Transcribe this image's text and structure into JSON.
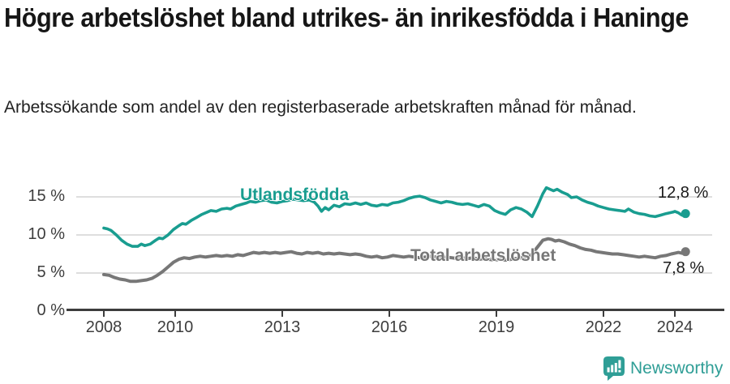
{
  "header": {
    "title": "Högre arbetslöshet bland utrikes- än inrikesfödda i Haninge",
    "subtitle": "Arbetssökande som andel av den registerbaserade arbetskraften månad för månad."
  },
  "chart_data": {
    "type": "line",
    "title": "Högre arbetslöshet bland utrikes- än inrikesfödda i Haninge",
    "xlabel": "",
    "ylabel": "",
    "unit": "%",
    "xlim": [
      2007.0,
      2025.4
    ],
    "ylim": [
      0,
      17
    ],
    "grid": true,
    "x_ticks": [
      2008,
      2010,
      2013,
      2016,
      2019,
      2022,
      2024
    ],
    "x_tick_labels": [
      "2008",
      "2010",
      "2013",
      "2016",
      "2019",
      "2022",
      "2024"
    ],
    "y_ticks": [
      0,
      5,
      10,
      15
    ],
    "y_tick_labels": [
      "0 %",
      "5 %",
      "10 %",
      "15 %"
    ],
    "colors": {
      "utlandsfodda": "#199d90",
      "total": "#777777",
      "grid": "#dedede",
      "axis": "#3d3d3d"
    },
    "series": [
      {
        "name": "Utlandsfödda",
        "color": "#199d90",
        "end_label": "12,8 %",
        "end_value": 12.8,
        "points": [
          [
            2008.0,
            10.9
          ],
          [
            2008.1,
            10.8
          ],
          [
            2008.2,
            10.6
          ],
          [
            2008.35,
            10.0
          ],
          [
            2008.5,
            9.3
          ],
          [
            2008.65,
            8.8
          ],
          [
            2008.8,
            8.5
          ],
          [
            2008.95,
            8.5
          ],
          [
            2009.05,
            8.8
          ],
          [
            2009.15,
            8.6
          ],
          [
            2009.3,
            8.8
          ],
          [
            2009.45,
            9.3
          ],
          [
            2009.55,
            9.6
          ],
          [
            2009.65,
            9.5
          ],
          [
            2009.8,
            10.0
          ],
          [
            2009.95,
            10.7
          ],
          [
            2010.1,
            11.2
          ],
          [
            2010.2,
            11.5
          ],
          [
            2010.3,
            11.4
          ],
          [
            2010.45,
            11.9
          ],
          [
            2010.6,
            12.3
          ],
          [
            2010.75,
            12.7
          ],
          [
            2010.9,
            13.0
          ],
          [
            2011.0,
            13.2
          ],
          [
            2011.15,
            13.1
          ],
          [
            2011.3,
            13.4
          ],
          [
            2011.45,
            13.5
          ],
          [
            2011.55,
            13.4
          ],
          [
            2011.7,
            13.8
          ],
          [
            2011.85,
            14.0
          ],
          [
            2012.0,
            14.2
          ],
          [
            2012.1,
            14.4
          ],
          [
            2012.25,
            14.3
          ],
          [
            2012.4,
            14.5
          ],
          [
            2012.55,
            14.6
          ],
          [
            2012.7,
            14.3
          ],
          [
            2012.85,
            14.2
          ],
          [
            2013.0,
            14.4
          ],
          [
            2013.15,
            14.5
          ],
          [
            2013.3,
            14.7
          ],
          [
            2013.45,
            14.6
          ],
          [
            2013.6,
            14.5
          ],
          [
            2013.75,
            14.6
          ],
          [
            2013.9,
            14.3
          ],
          [
            2014.0,
            13.8
          ],
          [
            2014.1,
            13.1
          ],
          [
            2014.2,
            13.6
          ],
          [
            2014.3,
            13.3
          ],
          [
            2014.45,
            13.9
          ],
          [
            2014.6,
            13.7
          ],
          [
            2014.75,
            14.1
          ],
          [
            2014.9,
            14.0
          ],
          [
            2015.05,
            14.2
          ],
          [
            2015.2,
            14.0
          ],
          [
            2015.35,
            14.2
          ],
          [
            2015.5,
            13.9
          ],
          [
            2015.65,
            13.8
          ],
          [
            2015.8,
            14.0
          ],
          [
            2015.95,
            13.9
          ],
          [
            2016.1,
            14.2
          ],
          [
            2016.25,
            14.3
          ],
          [
            2016.4,
            14.5
          ],
          [
            2016.55,
            14.8
          ],
          [
            2016.7,
            15.0
          ],
          [
            2016.85,
            15.1
          ],
          [
            2017.0,
            14.9
          ],
          [
            2017.15,
            14.6
          ],
          [
            2017.3,
            14.4
          ],
          [
            2017.45,
            14.2
          ],
          [
            2017.6,
            14.4
          ],
          [
            2017.75,
            14.3
          ],
          [
            2017.9,
            14.1
          ],
          [
            2018.05,
            14.0
          ],
          [
            2018.2,
            14.1
          ],
          [
            2018.35,
            13.9
          ],
          [
            2018.5,
            13.7
          ],
          [
            2018.65,
            14.0
          ],
          [
            2018.8,
            13.8
          ],
          [
            2018.95,
            13.2
          ],
          [
            2019.1,
            12.9
          ],
          [
            2019.25,
            12.7
          ],
          [
            2019.4,
            13.3
          ],
          [
            2019.55,
            13.6
          ],
          [
            2019.7,
            13.4
          ],
          [
            2019.85,
            13.0
          ],
          [
            2020.0,
            12.4
          ],
          [
            2020.15,
            13.8
          ],
          [
            2020.3,
            15.4
          ],
          [
            2020.4,
            16.2
          ],
          [
            2020.5,
            16.0
          ],
          [
            2020.6,
            15.8
          ],
          [
            2020.7,
            16.0
          ],
          [
            2020.85,
            15.6
          ],
          [
            2021.0,
            15.3
          ],
          [
            2021.1,
            14.9
          ],
          [
            2021.25,
            15.0
          ],
          [
            2021.4,
            14.6
          ],
          [
            2021.55,
            14.3
          ],
          [
            2021.7,
            14.1
          ],
          [
            2021.85,
            13.8
          ],
          [
            2022.0,
            13.6
          ],
          [
            2022.15,
            13.4
          ],
          [
            2022.3,
            13.3
          ],
          [
            2022.45,
            13.2
          ],
          [
            2022.6,
            13.1
          ],
          [
            2022.7,
            13.4
          ],
          [
            2022.85,
            13.0
          ],
          [
            2023.0,
            12.8
          ],
          [
            2023.15,
            12.7
          ],
          [
            2023.3,
            12.5
          ],
          [
            2023.45,
            12.4
          ],
          [
            2023.6,
            12.6
          ],
          [
            2023.75,
            12.8
          ],
          [
            2023.95,
            13.0
          ],
          [
            2024.0,
            13.1
          ],
          [
            2024.1,
            12.9
          ],
          [
            2024.2,
            12.6
          ],
          [
            2024.3,
            12.8
          ]
        ]
      },
      {
        "name": "Total arbetslöshet",
        "color": "#777777",
        "end_label": "7,8 %",
        "end_value": 7.8,
        "points": [
          [
            2008.0,
            4.8
          ],
          [
            2008.15,
            4.7
          ],
          [
            2008.3,
            4.4
          ],
          [
            2008.45,
            4.2
          ],
          [
            2008.6,
            4.1
          ],
          [
            2008.75,
            3.9
          ],
          [
            2008.9,
            3.9
          ],
          [
            2009.05,
            4.0
          ],
          [
            2009.2,
            4.1
          ],
          [
            2009.35,
            4.3
          ],
          [
            2009.5,
            4.7
          ],
          [
            2009.65,
            5.2
          ],
          [
            2009.8,
            5.8
          ],
          [
            2009.95,
            6.4
          ],
          [
            2010.1,
            6.8
          ],
          [
            2010.25,
            7.0
          ],
          [
            2010.4,
            6.9
          ],
          [
            2010.55,
            7.1
          ],
          [
            2010.7,
            7.2
          ],
          [
            2010.85,
            7.1
          ],
          [
            2011.0,
            7.2
          ],
          [
            2011.15,
            7.3
          ],
          [
            2011.3,
            7.2
          ],
          [
            2011.45,
            7.3
          ],
          [
            2011.6,
            7.2
          ],
          [
            2011.75,
            7.4
          ],
          [
            2011.9,
            7.3
          ],
          [
            2012.05,
            7.5
          ],
          [
            2012.2,
            7.7
          ],
          [
            2012.35,
            7.6
          ],
          [
            2012.5,
            7.7
          ],
          [
            2012.65,
            7.6
          ],
          [
            2012.8,
            7.7
          ],
          [
            2012.95,
            7.6
          ],
          [
            2013.1,
            7.7
          ],
          [
            2013.25,
            7.8
          ],
          [
            2013.4,
            7.6
          ],
          [
            2013.55,
            7.5
          ],
          [
            2013.7,
            7.7
          ],
          [
            2013.85,
            7.6
          ],
          [
            2014.0,
            7.7
          ],
          [
            2014.15,
            7.5
          ],
          [
            2014.3,
            7.6
          ],
          [
            2014.45,
            7.5
          ],
          [
            2014.6,
            7.6
          ],
          [
            2014.75,
            7.5
          ],
          [
            2014.9,
            7.4
          ],
          [
            2015.05,
            7.5
          ],
          [
            2015.2,
            7.4
          ],
          [
            2015.35,
            7.2
          ],
          [
            2015.5,
            7.1
          ],
          [
            2015.65,
            7.2
          ],
          [
            2015.8,
            7.0
          ],
          [
            2015.95,
            7.1
          ],
          [
            2016.1,
            7.3
          ],
          [
            2016.25,
            7.2
          ],
          [
            2016.4,
            7.1
          ],
          [
            2016.55,
            7.2
          ],
          [
            2016.7,
            7.1
          ],
          [
            2016.85,
            7.0
          ],
          [
            2017.0,
            7.1
          ],
          [
            2017.15,
            7.2
          ],
          [
            2017.3,
            7.1
          ],
          [
            2017.45,
            7.0
          ],
          [
            2017.6,
            7.1
          ],
          [
            2017.75,
            7.0
          ],
          [
            2017.9,
            6.9
          ],
          [
            2018.05,
            7.0
          ],
          [
            2018.2,
            6.9
          ],
          [
            2018.35,
            7.0
          ],
          [
            2018.5,
            6.8
          ],
          [
            2018.65,
            6.9
          ],
          [
            2018.8,
            6.8
          ],
          [
            2018.95,
            6.7
          ],
          [
            2019.1,
            6.8
          ],
          [
            2019.25,
            6.7
          ],
          [
            2019.4,
            6.8
          ],
          [
            2019.55,
            6.9
          ],
          [
            2019.7,
            7.0
          ],
          [
            2019.85,
            7.1
          ],
          [
            2020.0,
            7.5
          ],
          [
            2020.15,
            8.4
          ],
          [
            2020.3,
            9.3
          ],
          [
            2020.45,
            9.5
          ],
          [
            2020.55,
            9.4
          ],
          [
            2020.65,
            9.2
          ],
          [
            2020.75,
            9.3
          ],
          [
            2020.9,
            9.1
          ],
          [
            2021.05,
            8.8
          ],
          [
            2021.2,
            8.6
          ],
          [
            2021.35,
            8.3
          ],
          [
            2021.5,
            8.1
          ],
          [
            2021.65,
            8.0
          ],
          [
            2021.8,
            7.8
          ],
          [
            2021.95,
            7.7
          ],
          [
            2022.1,
            7.6
          ],
          [
            2022.25,
            7.5
          ],
          [
            2022.4,
            7.5
          ],
          [
            2022.55,
            7.4
          ],
          [
            2022.7,
            7.3
          ],
          [
            2022.85,
            7.2
          ],
          [
            2023.0,
            7.1
          ],
          [
            2023.15,
            7.2
          ],
          [
            2023.3,
            7.1
          ],
          [
            2023.45,
            7.0
          ],
          [
            2023.6,
            7.2
          ],
          [
            2023.75,
            7.3
          ],
          [
            2023.9,
            7.5
          ],
          [
            2024.0,
            7.6
          ],
          [
            2024.1,
            7.7
          ],
          [
            2024.2,
            7.6
          ],
          [
            2024.3,
            7.8
          ]
        ]
      }
    ],
    "legend_position": "inline-labels"
  },
  "footer": {
    "brand": "Newsworthy",
    "brand_color": "#2f9e96",
    "logo_icon": "newsworthy-speech-bubble-bar-chart-icon"
  }
}
